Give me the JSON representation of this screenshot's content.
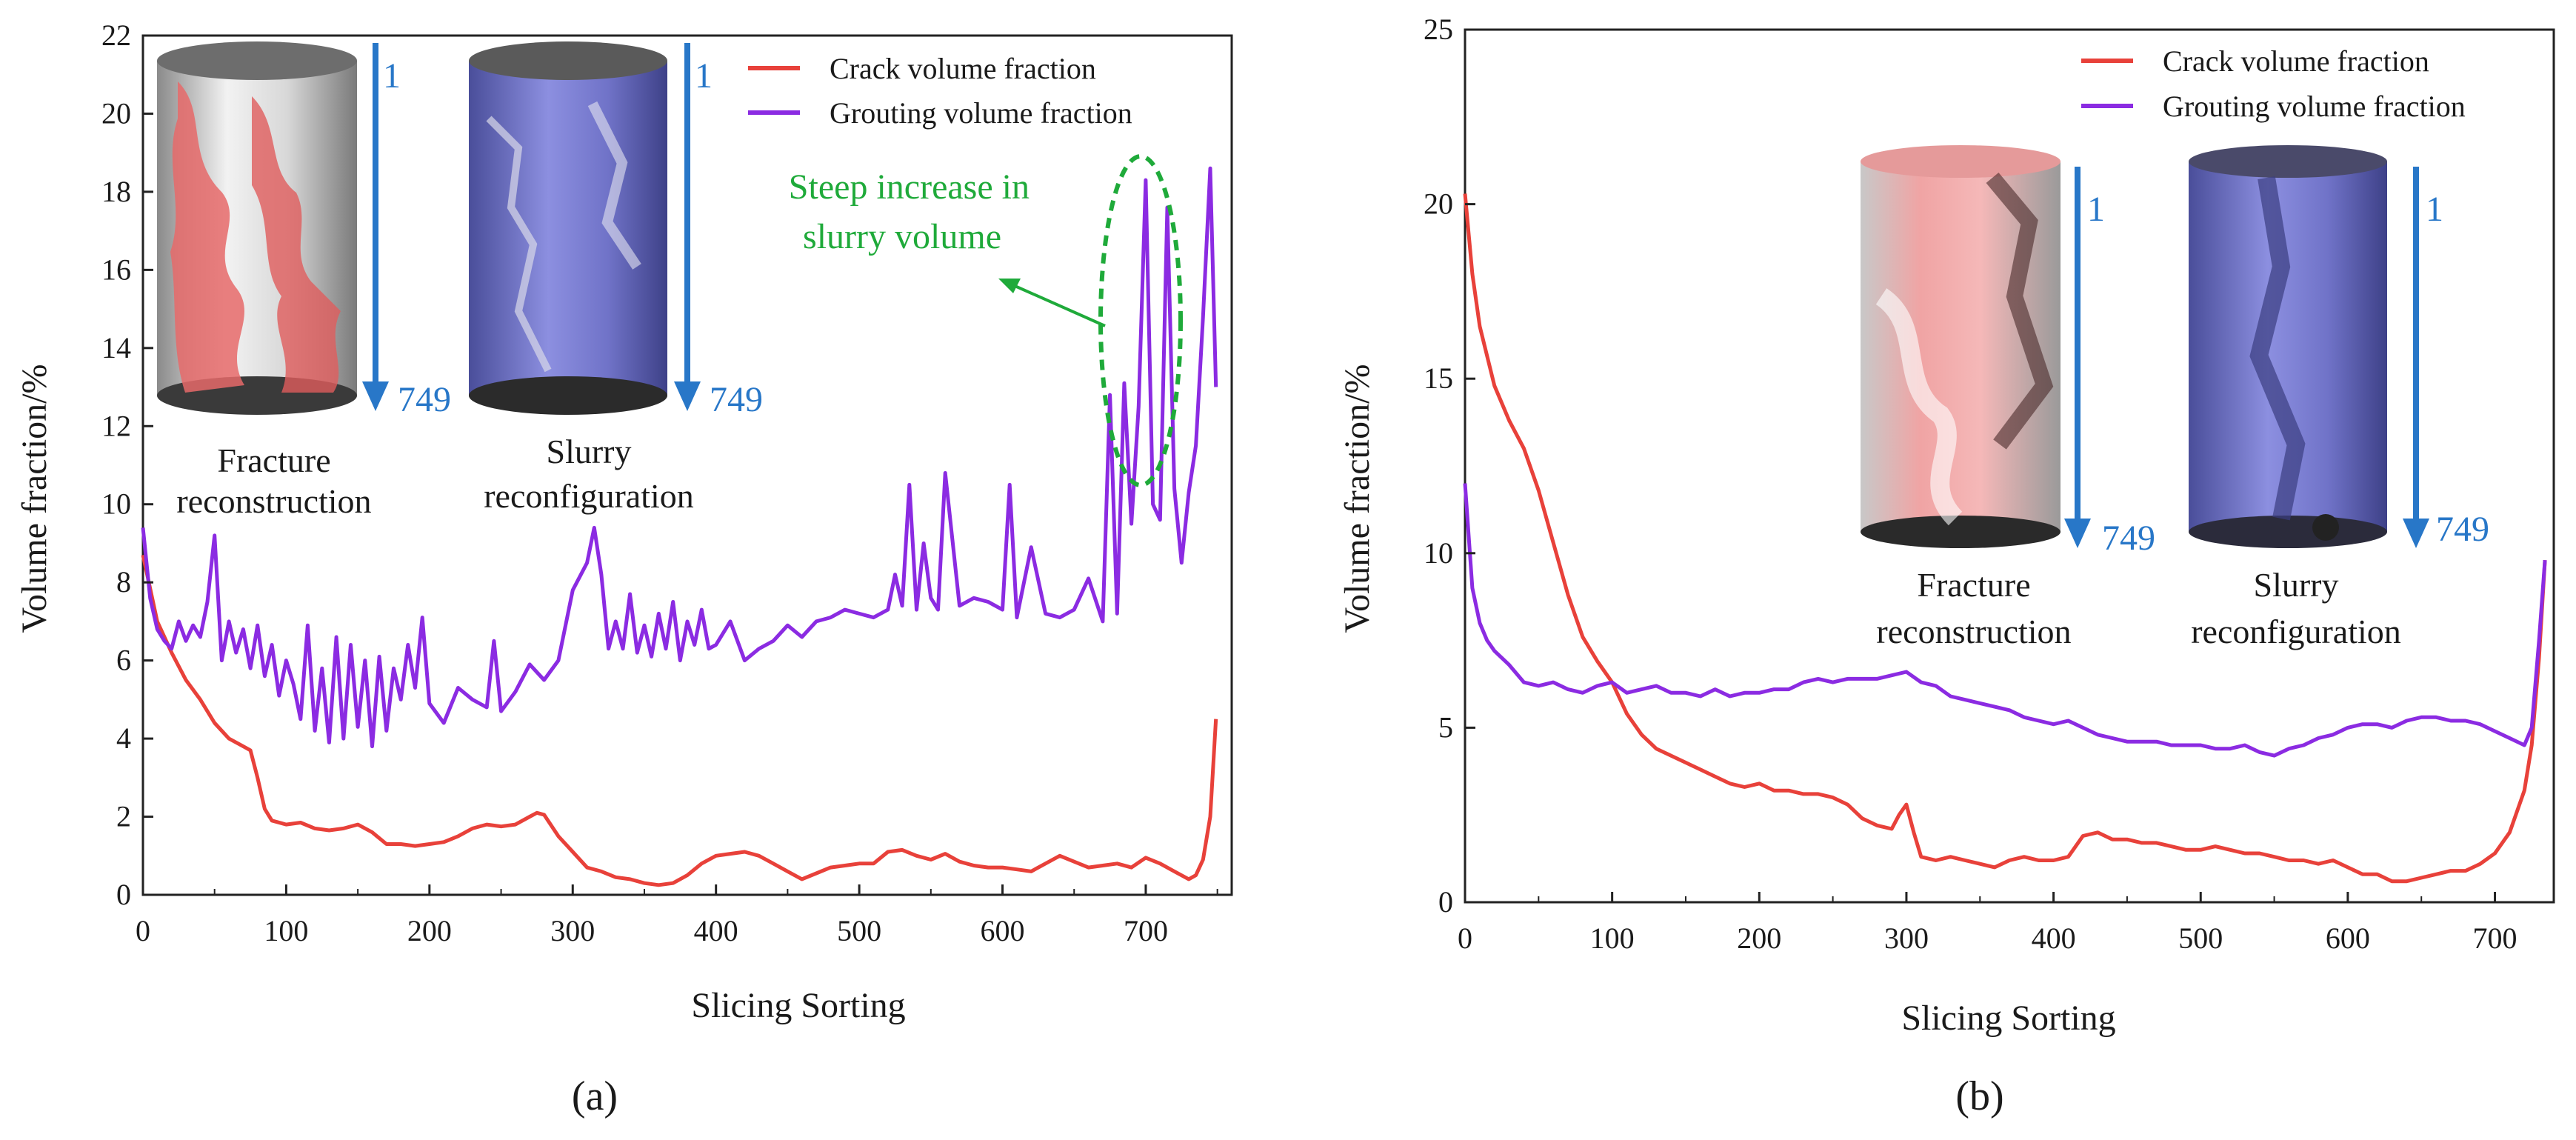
{
  "figure": {
    "panel_labels": [
      "(a)",
      "(b)"
    ]
  },
  "chart_data": [
    {
      "type": "line",
      "panel": "a",
      "xlabel": "Slicing Sorting",
      "ylabel": "Volume fraction/%",
      "xlim": [
        0,
        760
      ],
      "ylim": [
        0,
        22
      ],
      "xticks": [
        0,
        100,
        200,
        300,
        400,
        500,
        600,
        700
      ],
      "yticks": [
        0,
        2,
        4,
        6,
        8,
        10,
        12,
        14,
        16,
        18,
        20,
        22
      ],
      "legend_position": "top-right",
      "series": [
        {
          "name": "Crack volume fraction",
          "color": "#e8413a",
          "x": [
            0,
            10,
            20,
            30,
            40,
            50,
            60,
            70,
            75,
            80,
            85,
            90,
            100,
            110,
            120,
            130,
            140,
            150,
            160,
            170,
            180,
            190,
            200,
            210,
            220,
            230,
            240,
            250,
            260,
            270,
            275,
            280,
            290,
            300,
            310,
            320,
            330,
            340,
            350,
            360,
            370,
            380,
            390,
            400,
            410,
            420,
            430,
            440,
            450,
            460,
            470,
            480,
            490,
            500,
            510,
            520,
            530,
            540,
            550,
            560,
            570,
            580,
            590,
            600,
            610,
            620,
            630,
            640,
            650,
            660,
            670,
            680,
            690,
            700,
            710,
            720,
            730,
            735,
            740,
            745,
            749
          ],
          "y": [
            8.7,
            7.0,
            6.2,
            5.5,
            5.0,
            4.4,
            4.0,
            3.8,
            3.7,
            3.0,
            2.2,
            1.9,
            1.8,
            1.85,
            1.7,
            1.65,
            1.7,
            1.8,
            1.6,
            1.3,
            1.3,
            1.25,
            1.3,
            1.35,
            1.5,
            1.7,
            1.8,
            1.75,
            1.8,
            2.0,
            2.1,
            2.05,
            1.5,
            1.1,
            0.7,
            0.6,
            0.45,
            0.4,
            0.3,
            0.25,
            0.3,
            0.5,
            0.8,
            1.0,
            1.05,
            1.1,
            1.0,
            0.8,
            0.6,
            0.4,
            0.55,
            0.7,
            0.75,
            0.8,
            0.8,
            1.1,
            1.15,
            1.0,
            0.9,
            1.05,
            0.85,
            0.75,
            0.7,
            0.7,
            0.65,
            0.6,
            0.8,
            1.0,
            0.85,
            0.7,
            0.75,
            0.8,
            0.7,
            0.95,
            0.8,
            0.6,
            0.4,
            0.5,
            0.9,
            2.0,
            4.5
          ]
        },
        {
          "name": "Grouting volume fraction",
          "color": "#8b2be2",
          "x": [
            0,
            5,
            10,
            15,
            20,
            25,
            30,
            35,
            40,
            45,
            50,
            55,
            60,
            65,
            70,
            75,
            80,
            85,
            90,
            95,
            100,
            105,
            110,
            115,
            120,
            125,
            130,
            135,
            140,
            145,
            150,
            155,
            160,
            165,
            170,
            175,
            180,
            185,
            190,
            195,
            200,
            210,
            220,
            230,
            240,
            245,
            250,
            260,
            270,
            280,
            290,
            300,
            310,
            315,
            320,
            325,
            330,
            335,
            340,
            345,
            350,
            355,
            360,
            365,
            370,
            375,
            380,
            385,
            390,
            395,
            400,
            410,
            420,
            430,
            440,
            450,
            460,
            470,
            480,
            490,
            500,
            510,
            520,
            525,
            530,
            535,
            540,
            545,
            550,
            555,
            560,
            570,
            580,
            590,
            600,
            605,
            610,
            620,
            630,
            640,
            650,
            660,
            670,
            675,
            680,
            685,
            690,
            695,
            700,
            705,
            710,
            715,
            720,
            725,
            730,
            735,
            740,
            745,
            749
          ],
          "y": [
            9.4,
            7.6,
            6.8,
            6.5,
            6.3,
            7.0,
            6.5,
            6.9,
            6.6,
            7.5,
            9.2,
            6.0,
            7.0,
            6.2,
            6.8,
            5.8,
            6.9,
            5.6,
            6.4,
            5.1,
            6.0,
            5.4,
            4.5,
            6.9,
            4.2,
            5.8,
            3.9,
            6.6,
            4.0,
            6.4,
            4.3,
            6.0,
            3.8,
            6.1,
            4.2,
            5.8,
            5.0,
            6.4,
            5.3,
            7.1,
            4.9,
            4.4,
            5.3,
            5.0,
            4.8,
            6.5,
            4.7,
            5.2,
            5.9,
            5.5,
            6.0,
            7.8,
            8.5,
            9.4,
            8.2,
            6.3,
            7.0,
            6.3,
            7.7,
            6.2,
            6.9,
            6.1,
            7.2,
            6.3,
            7.5,
            6.0,
            7.0,
            6.4,
            7.3,
            6.3,
            6.4,
            7.0,
            6.0,
            6.3,
            6.5,
            6.9,
            6.6,
            7.0,
            7.1,
            7.3,
            7.2,
            7.1,
            7.3,
            8.2,
            7.4,
            10.5,
            7.3,
            9.0,
            7.6,
            7.3,
            10.8,
            7.4,
            7.6,
            7.5,
            7.3,
            10.5,
            7.1,
            8.9,
            7.2,
            7.1,
            7.3,
            8.1,
            7.0,
            12.8,
            7.2,
            13.1,
            9.5,
            12.5,
            18.3,
            10.0,
            9.6,
            17.6,
            10.4,
            8.5,
            10.3,
            11.5,
            14.8,
            18.6,
            13.0
          ]
        }
      ],
      "annotations": [
        {
          "text": "Steep increase in",
          "text2": "slurry volume"
        }
      ],
      "insets": [
        {
          "label1": "Fracture",
          "label2": "reconstruction",
          "arrow_top": "1",
          "arrow_bottom": "749"
        },
        {
          "label1": "Slurry",
          "label2": "reconfiguration",
          "arrow_top": "1",
          "arrow_bottom": "749"
        }
      ]
    },
    {
      "type": "line",
      "panel": "b",
      "xlabel": "Slicing Sorting",
      "ylabel": "Volume fraction/%",
      "xlim": [
        0,
        740
      ],
      "ylim": [
        0,
        25
      ],
      "xticks": [
        0,
        100,
        200,
        300,
        400,
        500,
        600,
        700
      ],
      "yticks": [
        0,
        5,
        10,
        15,
        20,
        25
      ],
      "legend_position": "top-right",
      "series": [
        {
          "name": "Crack volume fraction",
          "color": "#e8413a",
          "x": [
            0,
            5,
            10,
            20,
            30,
            40,
            50,
            60,
            70,
            80,
            90,
            100,
            110,
            120,
            130,
            140,
            150,
            160,
            170,
            180,
            190,
            200,
            210,
            220,
            230,
            240,
            250,
            260,
            270,
            280,
            290,
            295,
            300,
            305,
            310,
            320,
            330,
            340,
            350,
            360,
            370,
            380,
            390,
            400,
            410,
            420,
            430,
            440,
            450,
            460,
            470,
            480,
            490,
            500,
            510,
            520,
            530,
            540,
            550,
            560,
            570,
            580,
            590,
            600,
            610,
            620,
            630,
            640,
            650,
            660,
            670,
            680,
            690,
            700,
            710,
            720,
            725,
            730,
            734
          ],
          "y": [
            20.3,
            18.0,
            16.5,
            14.8,
            13.8,
            13.0,
            11.8,
            10.3,
            8.8,
            7.6,
            6.9,
            6.3,
            5.4,
            4.8,
            4.4,
            4.2,
            4.0,
            3.8,
            3.6,
            3.4,
            3.3,
            3.4,
            3.2,
            3.2,
            3.1,
            3.1,
            3.0,
            2.8,
            2.4,
            2.2,
            2.1,
            2.5,
            2.8,
            2.0,
            1.3,
            1.2,
            1.3,
            1.2,
            1.1,
            1.0,
            1.2,
            1.3,
            1.2,
            1.2,
            1.3,
            1.9,
            2.0,
            1.8,
            1.8,
            1.7,
            1.7,
            1.6,
            1.5,
            1.5,
            1.6,
            1.5,
            1.4,
            1.4,
            1.3,
            1.2,
            1.2,
            1.1,
            1.2,
            1.0,
            0.8,
            0.8,
            0.6,
            0.6,
            0.7,
            0.8,
            0.9,
            0.9,
            1.1,
            1.4,
            2.0,
            3.2,
            4.5,
            7.0,
            9.8
          ]
        },
        {
          "name": "Grouting volume fraction",
          "color": "#8b2be2",
          "x": [
            0,
            5,
            10,
            15,
            20,
            30,
            40,
            50,
            60,
            70,
            80,
            90,
            100,
            110,
            120,
            130,
            140,
            150,
            160,
            170,
            180,
            190,
            200,
            210,
            220,
            230,
            240,
            250,
            260,
            270,
            280,
            290,
            300,
            310,
            320,
            330,
            340,
            350,
            360,
            370,
            380,
            390,
            400,
            410,
            420,
            430,
            440,
            450,
            460,
            470,
            480,
            490,
            500,
            510,
            520,
            530,
            540,
            550,
            560,
            570,
            580,
            590,
            600,
            610,
            620,
            630,
            640,
            650,
            660,
            670,
            680,
            690,
            700,
            710,
            720,
            725,
            730,
            734
          ],
          "y": [
            12.0,
            9.0,
            8.0,
            7.5,
            7.2,
            6.8,
            6.3,
            6.2,
            6.3,
            6.1,
            6.0,
            6.2,
            6.3,
            6.0,
            6.1,
            6.2,
            6.0,
            6.0,
            5.9,
            6.1,
            5.9,
            6.0,
            6.0,
            6.1,
            6.1,
            6.3,
            6.4,
            6.3,
            6.4,
            6.4,
            6.4,
            6.5,
            6.6,
            6.3,
            6.2,
            5.9,
            5.8,
            5.7,
            5.6,
            5.5,
            5.3,
            5.2,
            5.1,
            5.2,
            5.0,
            4.8,
            4.7,
            4.6,
            4.6,
            4.6,
            4.5,
            4.5,
            4.5,
            4.4,
            4.4,
            4.5,
            4.3,
            4.2,
            4.4,
            4.5,
            4.7,
            4.8,
            5.0,
            5.1,
            5.1,
            5.0,
            5.2,
            5.3,
            5.3,
            5.2,
            5.2,
            5.1,
            4.9,
            4.7,
            4.5,
            5.0,
            7.5,
            9.8
          ]
        }
      ],
      "insets": [
        {
          "label1": "Fracture",
          "label2": "reconstruction",
          "arrow_top": "1",
          "arrow_bottom": "749"
        },
        {
          "label1": "Slurry",
          "label2": "reconfiguration",
          "arrow_top": "1",
          "arrow_bottom": "749"
        }
      ]
    }
  ]
}
